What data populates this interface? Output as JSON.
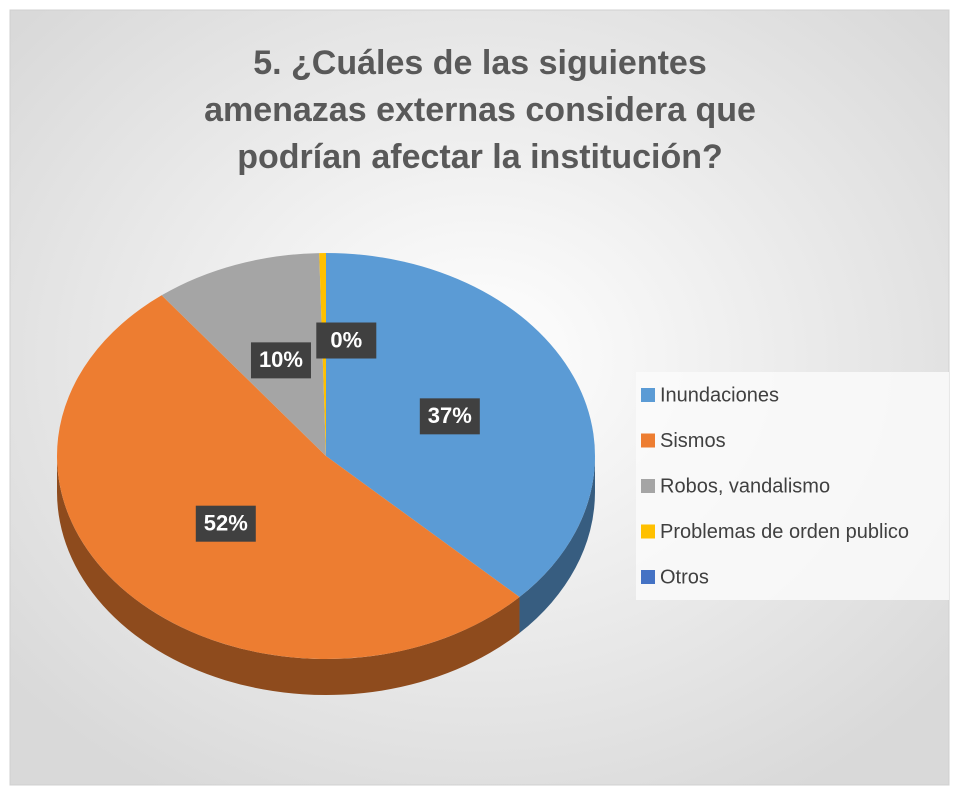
{
  "chart_data": {
    "type": "pie",
    "title": "5. ¿Cuáles de las siguientes amenazas externas considera que podrían afectar la institución?",
    "categories": [
      "Inundaciones",
      "Sismos",
      "Robos, vandalismo",
      "Problemas de orden publico",
      "Otros"
    ],
    "values": [
      37,
      52,
      10,
      0.4,
      0
    ],
    "value_labels": [
      "37%",
      "52%",
      "10%",
      "0%",
      null
    ],
    "colors": [
      "#5b9bd5",
      "#ed7d31",
      "#a5a5a5",
      "#ffc000",
      "#4472c4"
    ],
    "legend": "right"
  }
}
